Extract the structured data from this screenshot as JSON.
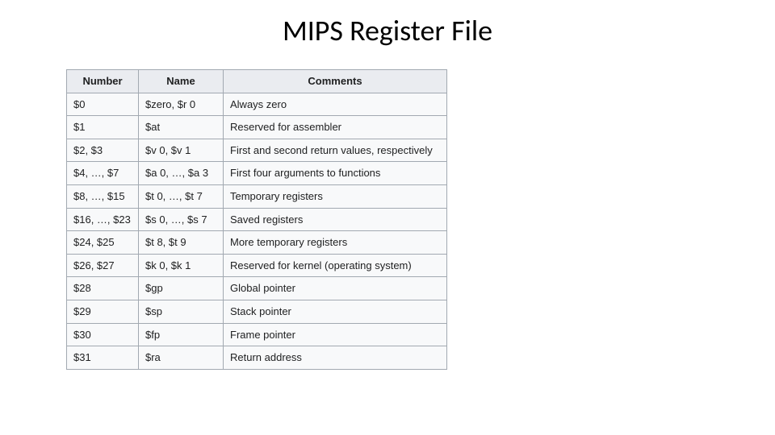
{
  "title": "MIPS Register File",
  "table": {
    "type": "table",
    "header_background": "#eaecf0",
    "cell_background": "#f8f9fa",
    "border_color": "#a2a9b1",
    "text_color": "#202122",
    "font_size_pt": 10,
    "columns": [
      "Number",
      "Name",
      "Comments"
    ],
    "rows": [
      [
        "$0",
        "$zero, $r 0",
        "Always zero"
      ],
      [
        "$1",
        "$at",
        "Reserved for assembler"
      ],
      [
        "$2, $3",
        "$v 0, $v 1",
        "First and second return values, respectively"
      ],
      [
        "$4, …, $7",
        "$a 0, …, $a 3",
        "First four arguments to functions"
      ],
      [
        "$8, …, $15",
        "$t 0, …, $t 7",
        "Temporary registers"
      ],
      [
        "$16, …, $23",
        "$s 0, …, $s 7",
        "Saved registers"
      ],
      [
        "$24, $25",
        "$t 8, $t 9",
        "More temporary registers"
      ],
      [
        "$26, $27",
        "$k 0, $k 1",
        "Reserved for kernel (operating system)"
      ],
      [
        "$28",
        "$gp",
        "Global pointer"
      ],
      [
        "$29",
        "$sp",
        "Stack pointer"
      ],
      [
        "$30",
        "$fp",
        "Frame pointer"
      ],
      [
        "$31",
        "$ra",
        "Return address"
      ]
    ]
  },
  "title_style": {
    "font_family": "Calibri",
    "font_size_pt": 28,
    "color": "#000000"
  }
}
